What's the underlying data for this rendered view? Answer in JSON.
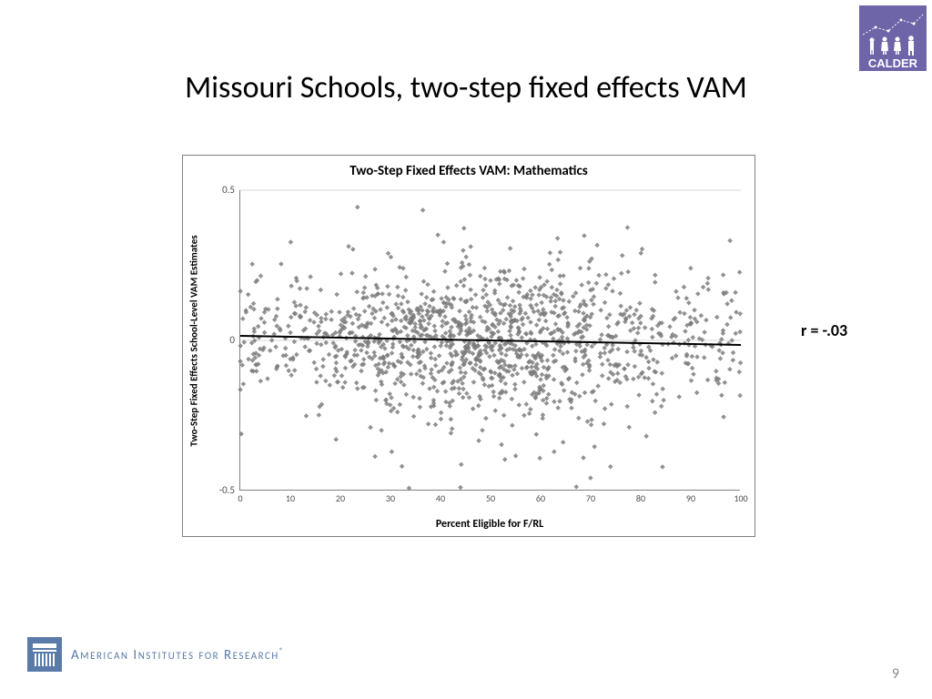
{
  "slide": {
    "title": "Missouri Schools, two-step fixed effects VAM",
    "page_number": "9",
    "background_color": "#ffffff"
  },
  "calder_logo": {
    "bg_color": "#6e64a8",
    "text": "CALDER",
    "text_color": "#ffffff"
  },
  "air_logo": {
    "text": "American Institutes for Research",
    "color": "#5a7ba8"
  },
  "correlation": {
    "label": "r = -.03",
    "value": -0.03
  },
  "chart": {
    "type": "scatter",
    "title": "Two-Step Fixed Effects VAM:  Mathematics",
    "title_fontsize": 15,
    "title_fontweight": "bold",
    "xlabel": "Percent Eligible for F/RL",
    "ylabel": "Two-Step Fixed Effects School-Level VAM Estimates",
    "label_fontsize": 12,
    "label_fontweight": "bold",
    "xlim": [
      0,
      100
    ],
    "ylim": [
      -0.5,
      0.5
    ],
    "xtick_step": 10,
    "ytick_step": 0.5,
    "xtick_labels": [
      "0",
      "10",
      "20",
      "30",
      "40",
      "50",
      "60",
      "70",
      "80",
      "90",
      "100"
    ],
    "ytick_labels": [
      "-0.5",
      "0",
      "0.5"
    ],
    "grid": {
      "x": false,
      "y": true,
      "color": "#d9d9d9"
    },
    "background_color": "#ffffff",
    "border_color": "#808080",
    "marker": {
      "shape": "diamond",
      "size": 5,
      "fill_color": "#808080",
      "border_color": "#666666",
      "opacity": 0.85
    },
    "trend_line": {
      "intercept": 0.015,
      "slope": -0.0003,
      "color": "#000000",
      "width": 2
    },
    "n_points_approx": 1400,
    "scatter_seed": 7,
    "y_spread_sd": 0.1
  }
}
